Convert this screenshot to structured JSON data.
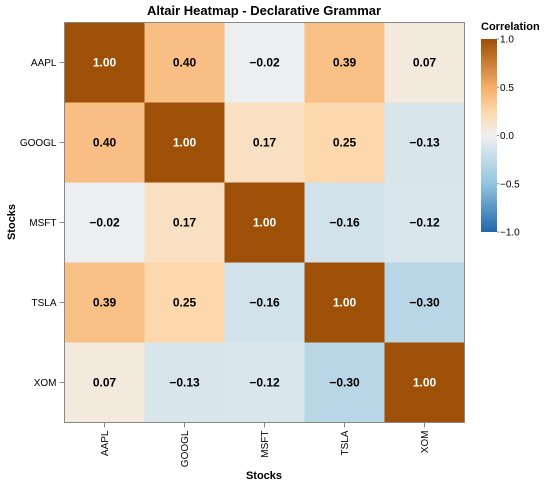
{
  "chart_data": {
    "type": "heatmap",
    "title": "Altair Heatmap - Declarative Grammar",
    "xlabel": "Stocks",
    "ylabel": "Stocks",
    "x": [
      "AAPL",
      "GOOGL",
      "MSFT",
      "TSLA",
      "XOM"
    ],
    "y": [
      "AAPL",
      "GOOGL",
      "MSFT",
      "TSLA",
      "XOM"
    ],
    "values": [
      [
        1.0,
        0.4,
        -0.02,
        0.39,
        0.07
      ],
      [
        0.4,
        1.0,
        0.17,
        0.25,
        -0.13
      ],
      [
        -0.02,
        0.17,
        1.0,
        -0.16,
        -0.12
      ],
      [
        0.39,
        0.25,
        -0.16,
        1.0,
        -0.3
      ],
      [
        0.07,
        -0.13,
        -0.12,
        -0.3,
        1.0
      ]
    ],
    "labels": [
      [
        "1.00",
        "0.40",
        "−0.02",
        "0.39",
        "0.07"
      ],
      [
        "0.40",
        "1.00",
        "0.17",
        "0.25",
        "−0.13"
      ],
      [
        "−0.02",
        "0.17",
        "1.00",
        "−0.16",
        "−0.12"
      ],
      [
        "0.39",
        "0.25",
        "−0.16",
        "1.00",
        "−0.30"
      ],
      [
        "0.07",
        "−0.13",
        "−0.12",
        "−0.30",
        "1.00"
      ]
    ],
    "color_scale": {
      "scheme": "brown-white-blue diverging",
      "domain": [
        -1.0,
        1.0
      ],
      "stops": [
        {
          "value": -1.0,
          "color": "#2166ac"
        },
        {
          "value": -0.5,
          "color": "#92c5de"
        },
        {
          "value": 0.0,
          "color": "#f0f0f0"
        },
        {
          "value": 0.25,
          "color": "#fdd8ad"
        },
        {
          "value": 0.5,
          "color": "#f6ad68"
        },
        {
          "value": 1.0,
          "color": "#9e4f08"
        }
      ]
    },
    "legend": {
      "title": "Correlation",
      "placement": "right",
      "ticks": [
        1.0,
        0.5,
        0.0,
        -0.5,
        -1.0
      ],
      "tick_labels": [
        "1.0",
        "0.5",
        "0.0",
        "−0.5",
        "−1.0"
      ]
    },
    "grid": false
  }
}
